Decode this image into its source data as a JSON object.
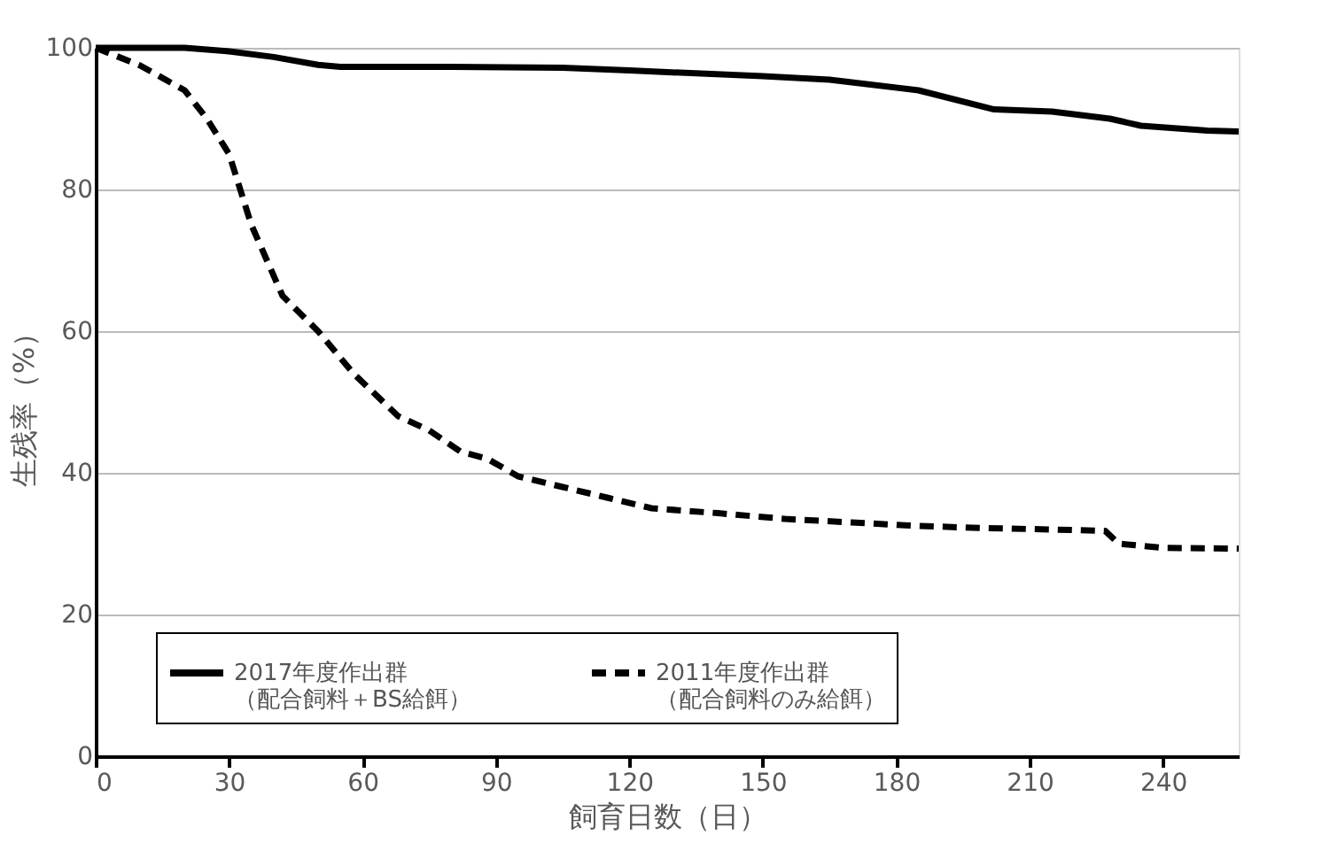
{
  "chart_data": {
    "type": "line",
    "xlabel": "飼育日数（日）",
    "ylabel": "生残率（%）",
    "xlim": [
      0,
      257
    ],
    "xticks": [
      0,
      30,
      60,
      90,
      120,
      150,
      180,
      210,
      240
    ],
    "ylim": [
      0,
      100
    ],
    "yticks": [
      0,
      20,
      40,
      60,
      80,
      100
    ],
    "grid": "y",
    "legend": "bottom",
    "marker": "none",
    "series": [
      {
        "name": "2017年度作出群（配合飼料＋BS給餌）",
        "color": "#000000",
        "line_style": "solid",
        "x": [
          0,
          20,
          30,
          40,
          50,
          55,
          80,
          105,
          120,
          150,
          165,
          185,
          202,
          215,
          228,
          235,
          250,
          257
        ],
        "values": [
          100,
          100,
          99.5,
          98.7,
          97.6,
          97.3,
          97.3,
          97.2,
          96.8,
          96.0,
          95.5,
          94.0,
          91.3,
          91.0,
          90.0,
          89.0,
          88.3,
          88.2
        ]
      },
      {
        "name": "2011年度作出群（配合飼料のみ給餌）",
        "color": "#000000",
        "line_style": "dashed",
        "x": [
          0,
          10,
          20,
          25,
          30,
          35,
          42,
          50,
          58,
          68,
          75,
          82,
          88,
          95,
          105,
          115,
          125,
          140,
          155,
          170,
          185,
          200,
          215,
          227,
          230,
          240,
          257
        ],
        "values": [
          100,
          97.5,
          94,
          90,
          85,
          75,
          65,
          60,
          54,
          48,
          46,
          43,
          42,
          39.5,
          38,
          36.5,
          35,
          34.3,
          33.5,
          33,
          32.5,
          32.2,
          32,
          31.8,
          30,
          29.4,
          29.3
        ]
      }
    ]
  }
}
